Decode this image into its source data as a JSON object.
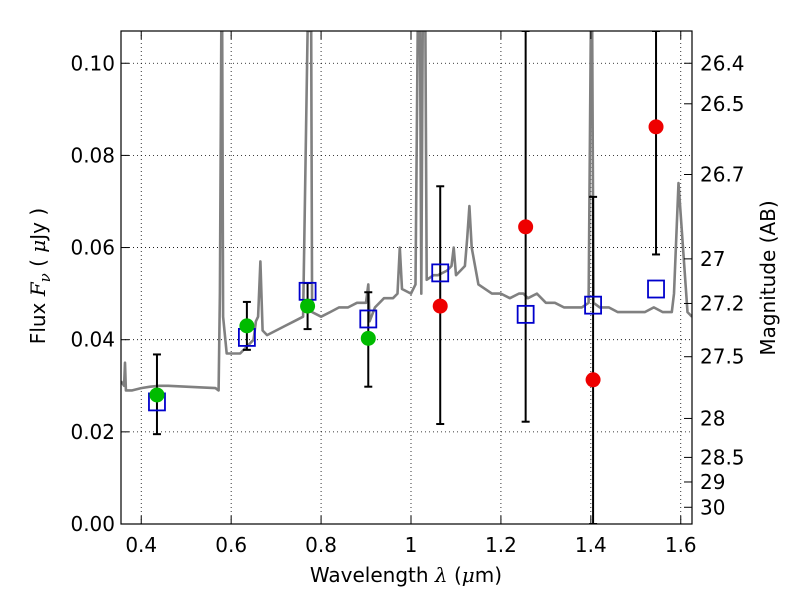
{
  "chart_data": {
    "type": "scatter",
    "title": "",
    "xlabel": {
      "text": "Wavelength",
      "symbol": "λ",
      "unit_open": "(",
      "unit_mu": "μ",
      "unit_rest": "m)"
    },
    "ylabel": {
      "text": "Flux",
      "symbol": "F",
      "subscript": "ν",
      "unit_open": "(",
      "unit_mu": "μ",
      "unit_rest": "Jy )"
    },
    "y2label": "Magnitude (AB)",
    "xlim": [
      0.355,
      1.625
    ],
    "ylim": [
      0.0,
      0.107
    ],
    "xticks": [
      {
        "v": 0.4,
        "label": "0.4"
      },
      {
        "v": 0.6,
        "label": "0.6"
      },
      {
        "v": 0.8,
        "label": "0.8"
      },
      {
        "v": 1.0,
        "label": "1"
      },
      {
        "v": 1.2,
        "label": "1.2"
      },
      {
        "v": 1.4,
        "label": "1.4"
      },
      {
        "v": 1.6,
        "label": "1.6"
      }
    ],
    "yticks": [
      {
        "v": 0.0,
        "label": "0.00"
      },
      {
        "v": 0.02,
        "label": "0.02"
      },
      {
        "v": 0.04,
        "label": "0.04"
      },
      {
        "v": 0.06,
        "label": "0.06"
      },
      {
        "v": 0.08,
        "label": "0.08"
      },
      {
        "v": 0.1,
        "label": "0.10"
      }
    ],
    "y2ticks": [
      {
        "mag": 26.4,
        "label": "26.4"
      },
      {
        "mag": 26.5,
        "label": "26.5"
      },
      {
        "mag": 26.7,
        "label": "26.7"
      },
      {
        "mag": 27.0,
        "label": "27"
      },
      {
        "mag": 27.2,
        "label": "27.2"
      },
      {
        "mag": 27.5,
        "label": "27.5"
      },
      {
        "mag": 28.0,
        "label": "28"
      },
      {
        "mag": 28.5,
        "label": "28.5"
      },
      {
        "mag": 29.0,
        "label": "29"
      },
      {
        "mag": 30.0,
        "label": "30"
      }
    ],
    "grid": true,
    "series": [
      {
        "kind": "line",
        "color": "#808080",
        "points": [
          [
            0.355,
            0.031
          ],
          [
            0.362,
            0.03
          ],
          [
            0.364,
            0.035
          ],
          [
            0.366,
            0.029
          ],
          [
            0.38,
            0.029
          ],
          [
            0.4,
            0.0295
          ],
          [
            0.42,
            0.0298
          ],
          [
            0.44,
            0.03
          ],
          [
            0.46,
            0.03
          ],
          [
            0.5,
            0.0298
          ],
          [
            0.54,
            0.0296
          ],
          [
            0.565,
            0.0295
          ],
          [
            0.572,
            0.029
          ],
          [
            0.575,
            0.05
          ],
          [
            0.578,
            0.107
          ],
          [
            0.58,
            0.107
          ],
          [
            0.582,
            0.045
          ],
          [
            0.59,
            0.037
          ],
          [
            0.6,
            0.037
          ],
          [
            0.61,
            0.037
          ],
          [
            0.62,
            0.037
          ],
          [
            0.63,
            0.038
          ],
          [
            0.64,
            0.039
          ],
          [
            0.65,
            0.04
          ],
          [
            0.655,
            0.044
          ],
          [
            0.66,
            0.045
          ],
          [
            0.665,
            0.057
          ],
          [
            0.67,
            0.042
          ],
          [
            0.68,
            0.041
          ],
          [
            0.7,
            0.042
          ],
          [
            0.72,
            0.043
          ],
          [
            0.74,
            0.044
          ],
          [
            0.76,
            0.045
          ],
          [
            0.77,
            0.107
          ],
          [
            0.778,
            0.107
          ],
          [
            0.78,
            0.046
          ],
          [
            0.8,
            0.045
          ],
          [
            0.82,
            0.046
          ],
          [
            0.84,
            0.047
          ],
          [
            0.86,
            0.047
          ],
          [
            0.88,
            0.048
          ],
          [
            0.9,
            0.048
          ],
          [
            0.905,
            0.052
          ],
          [
            0.908,
            0.044
          ],
          [
            0.92,
            0.047
          ],
          [
            0.94,
            0.049
          ],
          [
            0.96,
            0.049
          ],
          [
            0.97,
            0.05
          ],
          [
            0.975,
            0.06
          ],
          [
            0.98,
            0.051
          ],
          [
            1.0,
            0.05
          ],
          [
            1.01,
            0.052
          ],
          [
            1.015,
            0.107
          ],
          [
            1.02,
            0.107
          ],
          [
            1.023,
            0.05
          ],
          [
            1.026,
            0.107
          ],
          [
            1.032,
            0.107
          ],
          [
            1.035,
            0.053
          ],
          [
            1.05,
            0.054
          ],
          [
            1.06,
            0.054
          ],
          [
            1.08,
            0.055
          ],
          [
            1.09,
            0.056
          ],
          [
            1.095,
            0.06
          ],
          [
            1.1,
            0.054
          ],
          [
            1.11,
            0.055
          ],
          [
            1.12,
            0.056
          ],
          [
            1.125,
            0.062
          ],
          [
            1.13,
            0.069
          ],
          [
            1.135,
            0.06
          ],
          [
            1.15,
            0.052
          ],
          [
            1.18,
            0.05
          ],
          [
            1.2,
            0.05
          ],
          [
            1.22,
            0.049
          ],
          [
            1.24,
            0.05
          ],
          [
            1.25,
            0.05
          ],
          [
            1.26,
            0.049
          ],
          [
            1.28,
            0.05
          ],
          [
            1.3,
            0.048
          ],
          [
            1.32,
            0.048
          ],
          [
            1.34,
            0.047
          ],
          [
            1.36,
            0.047
          ],
          [
            1.38,
            0.047
          ],
          [
            1.395,
            0.048
          ],
          [
            1.4,
            0.107
          ],
          [
            1.403,
            0.107
          ],
          [
            1.406,
            0.048
          ],
          [
            1.42,
            0.047
          ],
          [
            1.44,
            0.047
          ],
          [
            1.46,
            0.046
          ],
          [
            1.48,
            0.046
          ],
          [
            1.5,
            0.046
          ],
          [
            1.52,
            0.046
          ],
          [
            1.54,
            0.047
          ],
          [
            1.56,
            0.046
          ],
          [
            1.58,
            0.046
          ],
          [
            1.585,
            0.05
          ],
          [
            1.595,
            0.074
          ],
          [
            1.605,
            0.06
          ],
          [
            1.615,
            0.046
          ],
          [
            1.625,
            0.045
          ]
        ]
      },
      {
        "kind": "squares",
        "color": "#0000cc",
        "points": [
          [
            0.435,
            0.0265
          ],
          [
            0.635,
            0.0405
          ],
          [
            0.77,
            0.0505
          ],
          [
            0.905,
            0.0445
          ],
          [
            1.065,
            0.0545
          ],
          [
            1.255,
            0.0455
          ],
          [
            1.405,
            0.0475
          ],
          [
            1.545,
            0.051
          ]
        ]
      },
      {
        "kind": "circles",
        "color": "#00bb00",
        "points": [
          [
            0.435,
            0.028
          ],
          [
            0.635,
            0.043
          ],
          [
            0.77,
            0.0473
          ],
          [
            0.905,
            0.0403
          ]
        ]
      },
      {
        "kind": "circles",
        "color": "#ee0000",
        "points": [
          [
            1.065,
            0.0473
          ],
          [
            1.255,
            0.0645
          ],
          [
            1.405,
            0.0313
          ],
          [
            1.545,
            0.0862
          ]
        ]
      },
      {
        "kind": "errorbars",
        "color": "#000000",
        "bars": [
          {
            "x": 0.435,
            "lo": 0.0195,
            "hi": 0.0368
          },
          {
            "x": 0.635,
            "lo": 0.0378,
            "hi": 0.0482
          },
          {
            "x": 0.77,
            "lo": 0.0423,
            "hi": 0.0523
          },
          {
            "x": 0.905,
            "lo": 0.0298,
            "hi": 0.0503
          },
          {
            "x": 1.065,
            "lo": 0.0217,
            "hi": 0.0733
          },
          {
            "x": 1.255,
            "lo": 0.0222,
            "hi": 0.107
          },
          {
            "x": 1.405,
            "lo": 0.0,
            "hi": 0.071
          },
          {
            "x": 1.545,
            "lo": 0.0585,
            "hi": 0.107
          }
        ]
      }
    ]
  }
}
